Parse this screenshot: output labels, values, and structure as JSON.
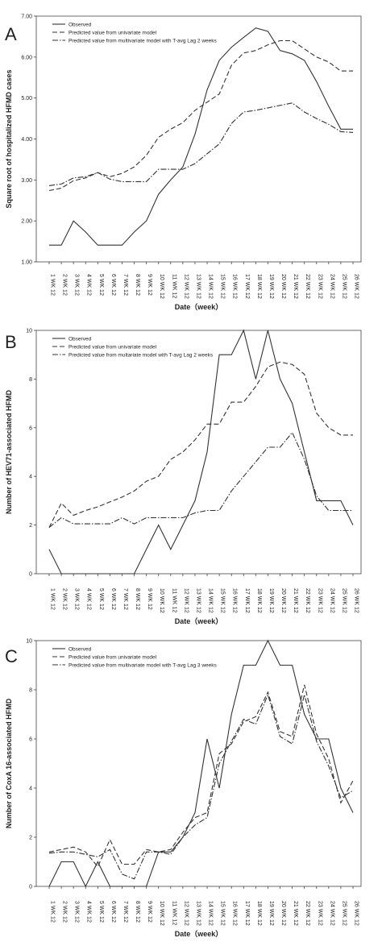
{
  "figure": {
    "panels": [
      "A",
      "B",
      "C"
    ]
  },
  "chart_data": [
    {
      "type": "line",
      "panel": "A",
      "xlabel": "Date（week）",
      "ylabel": "Square root of hospitalized HFMD cases",
      "ylim": [
        1.0,
        7.0
      ],
      "yticks": [
        "1.00",
        "2.00",
        "3.00",
        "4.00",
        "5.00",
        "6.00",
        "7.00"
      ],
      "ytick_values": [
        1,
        2,
        3,
        4,
        5,
        6,
        7
      ],
      "categories": [
        "1 WK 12",
        "2 WK 12",
        "3 WK 12",
        "4 WK 12",
        "5 WK 12",
        "6 WK 12",
        "7 WK 12",
        "8 WK 12",
        "9 WK 12",
        "10 WK 12",
        "11 WK 12",
        "12 WK 12",
        "13 WK 12",
        "14 WK 12",
        "15 WK 12",
        "16 WK 12",
        "17 WK 12",
        "18 WK 12",
        "19 WK 12",
        "20 WK 12",
        "21 WK 12",
        "22 WK 12",
        "23 WK 12",
        "24 WK 12",
        "25 WK 12",
        "26 WK 12"
      ],
      "legend_position": "top-left",
      "series": [
        {
          "name": "Observed",
          "style": "solid",
          "values": [
            1.41,
            1.41,
            2.0,
            1.73,
            1.41,
            1.41,
            1.41,
            1.73,
            2.0,
            2.65,
            3.0,
            3.32,
            4.12,
            5.2,
            5.92,
            6.24,
            6.48,
            6.71,
            6.63,
            6.16,
            6.08,
            5.92,
            5.4,
            4.8,
            4.24,
            4.24
          ]
        },
        {
          "name": "Predicted value from univariate model",
          "style": "dashed",
          "values": [
            2.74,
            2.8,
            2.98,
            3.05,
            3.18,
            3.08,
            3.16,
            3.32,
            3.6,
            4.04,
            4.24,
            4.4,
            4.7,
            4.9,
            5.1,
            5.8,
            6.1,
            6.16,
            6.3,
            6.4,
            6.4,
            6.2,
            6.0,
            5.88,
            5.66,
            5.66
          ]
        },
        {
          "name": "Predicted value from multivariate model with T-avg Lag 2 weeks",
          "style": "dashdot",
          "values": [
            2.86,
            2.9,
            3.05,
            3.08,
            3.18,
            3.02,
            2.96,
            2.96,
            2.96,
            3.26,
            3.26,
            3.26,
            3.4,
            3.64,
            3.88,
            4.38,
            4.66,
            4.7,
            4.76,
            4.82,
            4.88,
            4.66,
            4.5,
            4.36,
            4.18,
            4.16
          ]
        }
      ]
    },
    {
      "type": "line",
      "panel": "B",
      "xlabel": "Date（week）",
      "ylabel": "Number of HEV71-associated HFMD",
      "ylim": [
        0,
        10
      ],
      "yticks": [
        "0",
        "2",
        "4",
        "6",
        "8",
        "10"
      ],
      "ytick_values": [
        0,
        2,
        4,
        6,
        8,
        10
      ],
      "categories": [
        "1 WK 12",
        "2 WK 12",
        "3 WK 12",
        "4 WK 12",
        "5 WK 12",
        "6 WK 12",
        "7 WK 12",
        "8 WK 12",
        "9 WK 12",
        "10 WK 12",
        "11 WK 12",
        "12 WK 12",
        "13 WK 12",
        "14 WK 12",
        "15 WK 12",
        "16 WK 12",
        "17 WK 12",
        "18 WK 12",
        "19 WK 12",
        "20 WK 12",
        "21 WK 12",
        "22 WK 12",
        "23 WK 12",
        "24 WK 12",
        "25 WK 12",
        "26 WK 12"
      ],
      "legend_position": "top-left",
      "series": [
        {
          "name": "Observed",
          "style": "solid",
          "values": [
            1,
            0,
            0,
            0,
            0,
            0,
            0,
            0,
            1,
            2,
            1,
            2,
            3,
            5,
            9,
            9,
            10,
            8,
            10,
            8,
            7,
            5,
            3,
            3,
            3,
            2
          ]
        },
        {
          "name": "Predicted value from univariate model",
          "style": "dashed",
          "values": [
            1.9,
            2.9,
            2.4,
            2.6,
            2.75,
            2.95,
            3.15,
            3.4,
            3.8,
            4.0,
            4.7,
            5.0,
            5.5,
            6.15,
            6.15,
            7.05,
            7.05,
            7.7,
            8.5,
            8.7,
            8.6,
            8.2,
            6.6,
            6.0,
            5.7,
            5.7
          ]
        },
        {
          "name": "Predicted value from multariate model with T-avg Lag 2 weeks",
          "style": "dashdot",
          "values": [
            1.9,
            2.3,
            2.05,
            2.05,
            2.05,
            2.05,
            2.3,
            2.05,
            2.3,
            2.3,
            2.3,
            2.3,
            2.5,
            2.6,
            2.6,
            3.4,
            4.0,
            4.6,
            5.2,
            5.2,
            5.8,
            4.7,
            3.2,
            2.6,
            2.6,
            2.6
          ]
        }
      ]
    },
    {
      "type": "line",
      "panel": "C",
      "xlabel": "Date（week）",
      "ylabel": "Number of CoxA 16-associated HFMD",
      "ylim": [
        0,
        10
      ],
      "yticks": [
        "0",
        "2",
        "4",
        "6",
        "8",
        "10"
      ],
      "ytick_values": [
        0,
        2,
        4,
        6,
        8,
        10
      ],
      "categories": [
        "1 WK 12",
        "2 WK 12",
        "3 WK 12",
        "4 WK 12",
        "5 WK 12",
        "6 WK 12",
        "7 WK 12",
        "8 WK 12",
        "9 WK 12",
        "10 WK 12",
        "11 WK 12",
        "12 WK 12",
        "13 WK 12",
        "14 WK 12",
        "15 WK 12",
        "16 WK 12",
        "17 WK 12",
        "18 WK 12",
        "19 WK 12",
        "20 WK 12",
        "21 WK 12",
        "22 WK 12",
        "23 WK 12",
        "24 WK 12",
        "25 WK 12",
        "26 WK 12"
      ],
      "legend_position": "top-left",
      "series": [
        {
          "name": "Observed",
          "style": "solid",
          "values": [
            0,
            1,
            1,
            0,
            1,
            0,
            0,
            0,
            0,
            1.4,
            1.4,
            2,
            3,
            6,
            4,
            7,
            9,
            9,
            10,
            9,
            9,
            7,
            6,
            6,
            4,
            3
          ]
        },
        {
          "name": "Predicted value from univariate model",
          "style": "dashed",
          "values": [
            1.4,
            1.5,
            1.6,
            1.4,
            0.8,
            1.9,
            0.9,
            0.9,
            1.5,
            1.4,
            1.5,
            2.2,
            2.8,
            3.0,
            5.4,
            5.8,
            6.7,
            6.9,
            7.9,
            6.3,
            6.1,
            8.2,
            6.2,
            5.2,
            3.4,
            4.3
          ]
        },
        {
          "name": "Predicted value from multivariate model with T-avg Lag 3 weeks",
          "style": "dashdot",
          "values": [
            1.35,
            1.4,
            1.4,
            1.3,
            1.2,
            1.5,
            0.5,
            0.3,
            1.4,
            1.4,
            1.3,
            2.0,
            2.5,
            2.8,
            5.0,
            5.9,
            6.8,
            6.6,
            7.8,
            6.1,
            5.8,
            7.8,
            5.9,
            4.9,
            3.6,
            3.9
          ]
        }
      ]
    }
  ]
}
